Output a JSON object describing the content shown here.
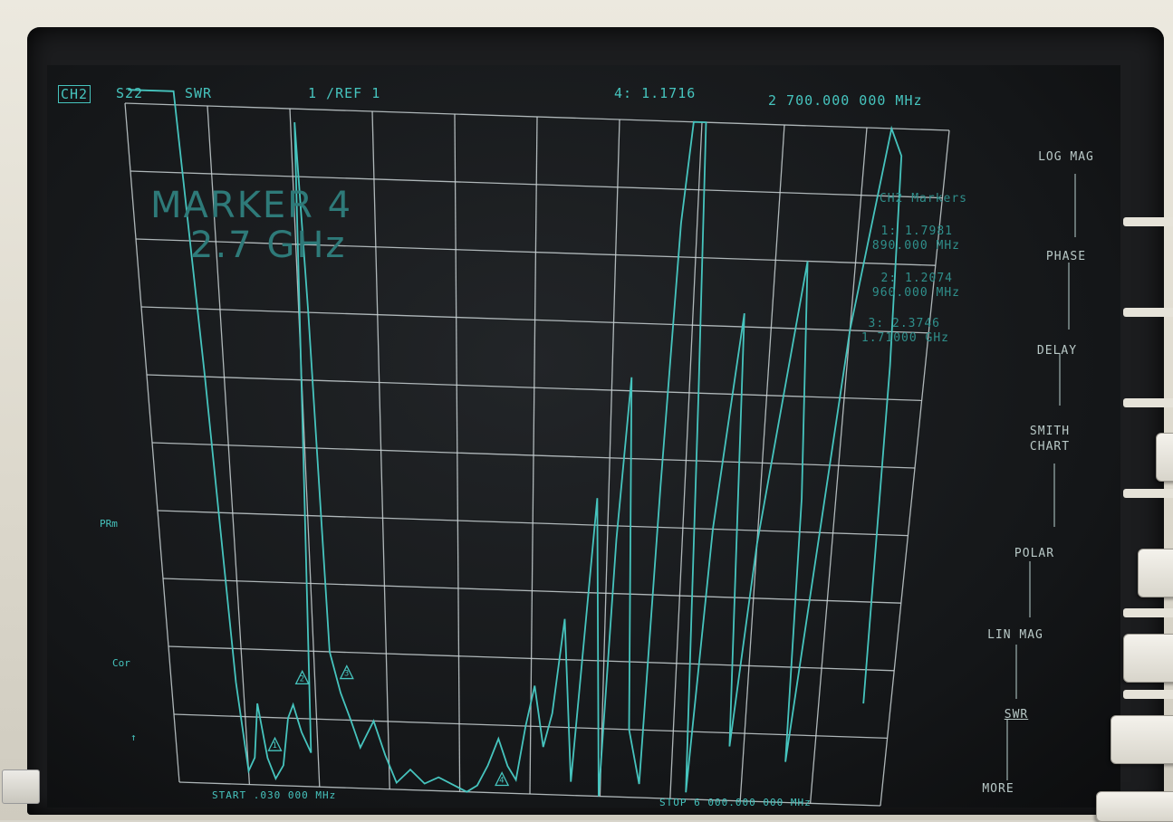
{
  "header": {
    "channel": "CH2",
    "parameter": "S22",
    "format": "SWR",
    "scale": "1  /REF 1",
    "active_marker": "4: 1.1716",
    "active_marker_freq": "2 700.000 000 MHz"
  },
  "annotation": {
    "line1": "MARKER 4",
    "line2": "2.7 GHz"
  },
  "markers_panel": {
    "title": "CH2 Markers",
    "items": [
      {
        "value": "1: 1.7981",
        "freq": "890.000 MHz"
      },
      {
        "value": "2: 1.2074",
        "freq": "960.000 MHz"
      },
      {
        "value": "3: 2.3746",
        "freq": "1.71000 GHz"
      }
    ]
  },
  "footer": {
    "start": "START  .030 000 MHz",
    "stop": "STOP 6 000.000 000 MHz"
  },
  "side_labels": {
    "prm": "PRm",
    "cor": "Cor",
    "arrow": "↑"
  },
  "softkeys": [
    "LOG MAG",
    "PHASE",
    "DELAY",
    "SMITH CHART",
    "POLAR",
    "LIN MAG",
    "SWR",
    "MORE"
  ],
  "marker_symbols": [
    "1",
    "2",
    "3",
    "4"
  ],
  "colors": {
    "trace": "#46c4be",
    "grid": "#c9d2d4",
    "screen": "#141618"
  }
}
